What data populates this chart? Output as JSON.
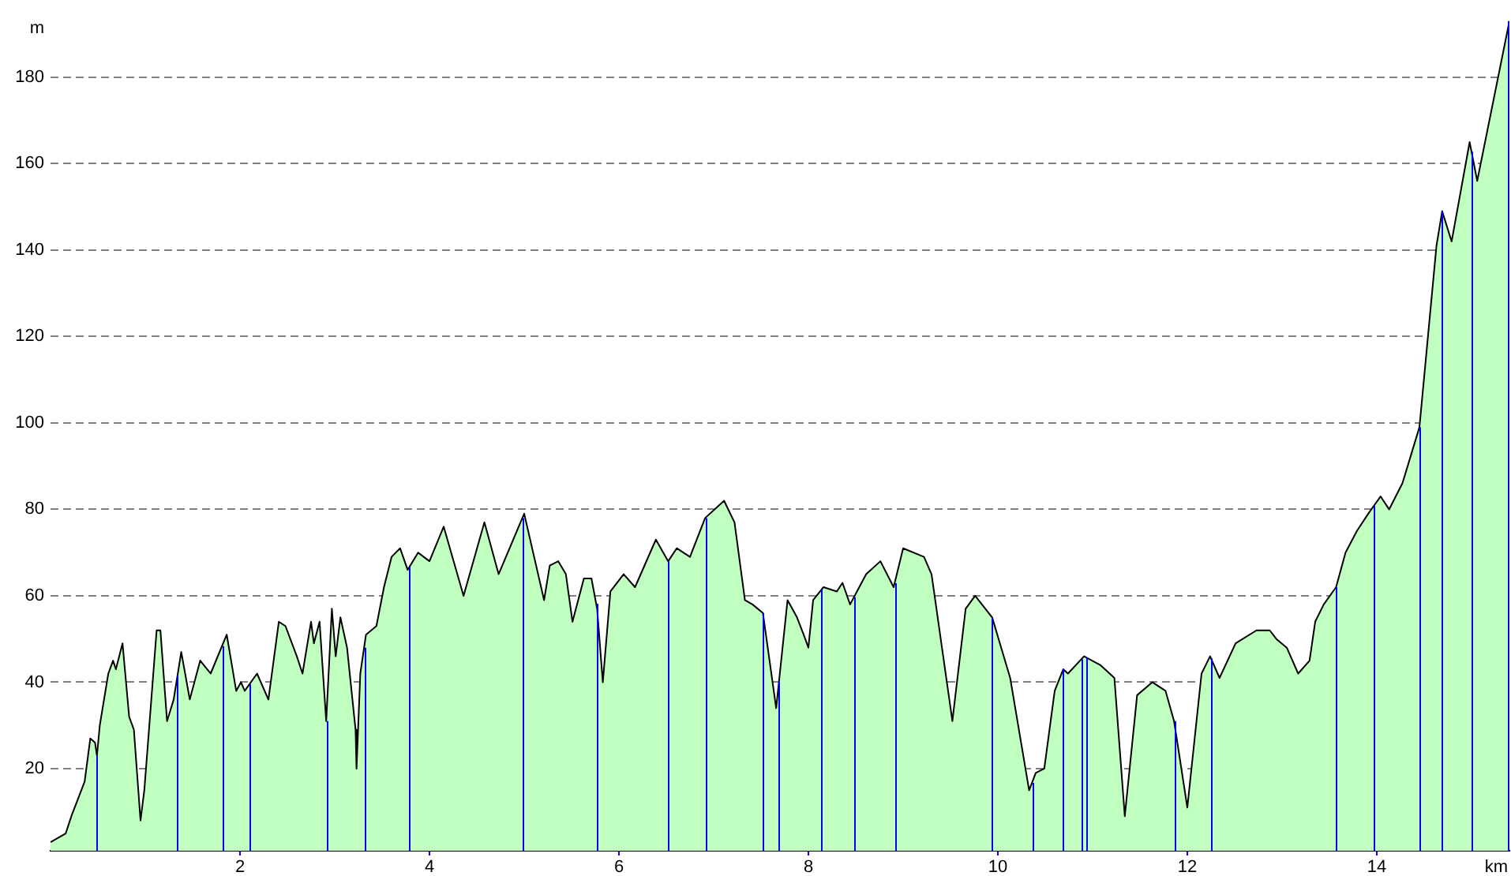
{
  "chart_data": {
    "type": "area",
    "xlabel": "km",
    "ylabel": "m",
    "series": [
      {
        "color": "#c0ffc0",
        "x": [
          0,
          0.08,
          0.16,
          0.22,
          0.36,
          0.42,
          0.47,
          0.49,
          0.52,
          0.61,
          0.66,
          0.69,
          0.76,
          0.83,
          0.88,
          0.95,
          0.99,
          1.05,
          1.12,
          1.16,
          1.23,
          1.3,
          1.38,
          1.47,
          1.58,
          1.69,
          1.86,
          1.96,
          2.01,
          2.05,
          2.18,
          2.3,
          2.41,
          2.48,
          2.6,
          2.66,
          2.75,
          2.78,
          2.84,
          2.91,
          2.97,
          3.01,
          3.06,
          3.13,
          3.22,
          3.23,
          3.27,
          3.33,
          3.44,
          3.52,
          3.6,
          3.69,
          3.77,
          3.88,
          4.0,
          4.15,
          4.36,
          4.58,
          4.73,
          5.0,
          5.21,
          5.27,
          5.36,
          5.44,
          5.51,
          5.63,
          5.71,
          5.77,
          5.83,
          5.91,
          6.05,
          6.17,
          6.39,
          6.52,
          6.61,
          6.75,
          6.91,
          7.11,
          7.22,
          7.33,
          7.41,
          7.52,
          7.66,
          7.78,
          7.88,
          7.95,
          8.0,
          8.05,
          8.16,
          8.3,
          8.36,
          8.44,
          8.61,
          8.76,
          8.9,
          9.0,
          9.22,
          9.3,
          9.52,
          9.66,
          9.76,
          9.94,
          10.13,
          10.33,
          10.4,
          10.49,
          10.6,
          10.69,
          10.74,
          10.91,
          11.08,
          11.23,
          11.34,
          11.47,
          11.63,
          11.77,
          11.86,
          12.0,
          12.15,
          12.24,
          12.34,
          12.51,
          12.73,
          12.87,
          12.94,
          13.05,
          13.17,
          13.29,
          13.35,
          13.44,
          13.57,
          13.67,
          13.79,
          13.91,
          14.04,
          14.13,
          14.27,
          14.45,
          14.54,
          14.63,
          14.69,
          14.79,
          14.98,
          15.06,
          15.4
        ],
        "values": [
          3,
          4,
          5,
          9,
          17,
          27,
          26,
          23,
          30,
          42,
          45,
          43,
          49,
          32,
          29,
          8,
          15,
          32,
          52,
          52,
          31,
          36,
          47,
          36,
          45,
          42,
          51,
          38,
          40,
          38,
          42,
          36,
          54,
          53,
          46,
          42,
          54,
          49,
          54,
          31,
          57,
          46,
          55,
          48,
          29,
          20,
          42,
          51,
          53,
          62,
          69,
          71,
          66,
          70,
          68,
          76,
          60,
          77,
          65,
          79,
          59,
          67,
          68,
          65,
          54,
          64,
          64,
          57,
          40,
          61,
          65,
          62,
          73,
          68,
          71,
          69,
          78,
          82,
          77,
          59,
          58,
          56,
          34,
          59,
          55,
          51,
          48,
          59,
          62,
          61,
          63,
          58,
          65,
          68,
          62,
          71,
          69,
          65,
          31,
          57,
          60,
          55,
          41,
          15,
          19,
          20,
          38,
          43,
          42,
          46,
          44,
          41,
          9,
          37,
          40,
          38,
          31,
          11,
          42,
          46,
          41,
          49,
          52,
          52,
          50,
          48,
          42,
          45,
          54,
          58,
          62,
          70,
          75,
          79,
          83,
          80,
          86,
          99,
          120,
          141,
          149,
          142,
          165,
          156,
          193
        ]
      }
    ],
    "xlim": [
      0,
      15.4
    ],
    "xticks": [
      2,
      4,
      6,
      8,
      10,
      12,
      14
    ],
    "ylim": [
      1,
      194
    ],
    "yticks": [
      20,
      40,
      60,
      80,
      100,
      120,
      140,
      160,
      180
    ],
    "grid": "y",
    "legend": false,
    "marker": "none",
    "line_style": "solid",
    "ref_lines": [
      {
        "axis": "x",
        "value": 0.49,
        "color": "#0000ff"
      },
      {
        "axis": "x",
        "value": 1.34,
        "color": "#0000ff"
      },
      {
        "axis": "x",
        "value": 1.81,
        "color": "#0000ff"
      },
      {
        "axis": "x",
        "value": 2.1,
        "color": "#0000ff"
      },
      {
        "axis": "x",
        "value": 2.91,
        "color": "#0000ff"
      },
      {
        "axis": "x",
        "value": 3.31,
        "color": "#0000ff"
      },
      {
        "axis": "x",
        "value": 3.79,
        "color": "#0000ff"
      },
      {
        "axis": "x",
        "value": 4.98,
        "color": "#0000ff"
      },
      {
        "axis": "x",
        "value": 5.76,
        "color": "#0000ff"
      },
      {
        "axis": "x",
        "value": 6.52,
        "color": "#0000ff"
      },
      {
        "axis": "x",
        "value": 6.91,
        "color": "#0000ff"
      },
      {
        "axis": "x",
        "value": 7.52,
        "color": "#0000ff"
      },
      {
        "axis": "x",
        "value": 7.69,
        "color": "#0000ff"
      },
      {
        "axis": "x",
        "value": 8.14,
        "color": "#0000ff"
      },
      {
        "axis": "x",
        "value": 8.48,
        "color": "#0000ff"
      },
      {
        "axis": "x",
        "value": 8.91,
        "color": "#0000ff"
      },
      {
        "axis": "x",
        "value": 9.94,
        "color": "#0000ff"
      },
      {
        "axis": "x",
        "value": 10.36,
        "color": "#0000ff"
      },
      {
        "axis": "x",
        "value": 10.69,
        "color": "#0000ff"
      },
      {
        "axis": "x",
        "value": 10.88,
        "color": "#0000ff"
      },
      {
        "axis": "x",
        "value": 10.93,
        "color": "#0000ff"
      },
      {
        "axis": "x",
        "value": 11.86,
        "color": "#0000ff"
      },
      {
        "axis": "x",
        "value": 12.25,
        "color": "#0000ff"
      },
      {
        "axis": "x",
        "value": 13.57,
        "color": "#0000ff"
      },
      {
        "axis": "x",
        "value": 13.97,
        "color": "#0000ff"
      },
      {
        "axis": "x",
        "value": 14.45,
        "color": "#0000ff"
      },
      {
        "axis": "x",
        "value": 14.69,
        "color": "#0000ff"
      },
      {
        "axis": "x",
        "value": 15.0,
        "color": "#0000ff"
      },
      {
        "axis": "x",
        "value": 15.4,
        "color": "#0000ff"
      }
    ]
  }
}
